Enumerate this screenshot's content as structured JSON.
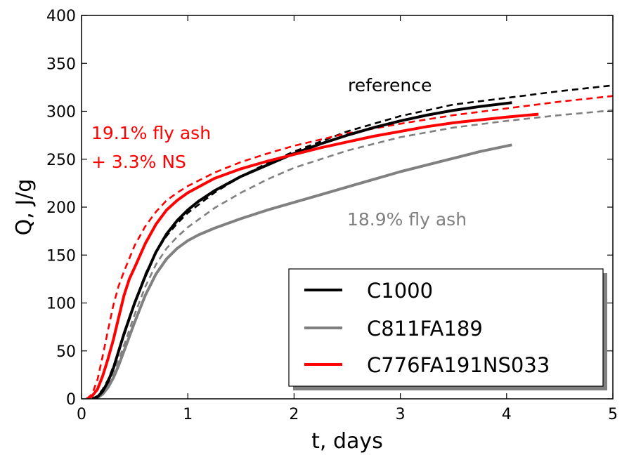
{
  "chart_data": {
    "type": "line",
    "xlabel": "t, days",
    "ylabel": "Q, J/g",
    "xlim": [
      0,
      5
    ],
    "ylim": [
      0,
      400
    ],
    "xticks": [
      "0",
      "1",
      "2",
      "3",
      "4",
      "5"
    ],
    "yticks": [
      "0",
      "50",
      "100",
      "150",
      "200",
      "250",
      "300",
      "350",
      "400"
    ],
    "grid": false,
    "legend_position": "bottom-right",
    "annotations": [
      {
        "text": "reference",
        "color": "#000000"
      },
      {
        "text": "19.1% fly ash",
        "color": "#ff0000"
      },
      {
        "text": "+ 3.3% NS",
        "color": "#ff0000"
      },
      {
        "text": "18.9% fly ash",
        "color": "#808080"
      }
    ],
    "series": [
      {
        "name": "C1000",
        "color": "#000000",
        "style": "solid",
        "x": [
          0.1,
          0.15,
          0.2,
          0.25,
          0.3,
          0.35,
          0.4,
          0.5,
          0.6,
          0.7,
          0.8,
          0.9,
          1.0,
          1.1,
          1.25,
          1.5,
          1.75,
          2.0,
          2.25,
          2.5,
          2.75,
          3.0,
          3.25,
          3.5,
          3.75,
          4.05
        ],
        "y": [
          0,
          2,
          8,
          18,
          32,
          50,
          68,
          100,
          128,
          153,
          172,
          186,
          197,
          206,
          217,
          232,
          244,
          256,
          266,
          275,
          283,
          290,
          296,
          301,
          305,
          309
        ]
      },
      {
        "name": "C811FA189",
        "color": "#808080",
        "style": "solid",
        "x": [
          0.1,
          0.15,
          0.2,
          0.25,
          0.3,
          0.35,
          0.4,
          0.5,
          0.6,
          0.7,
          0.8,
          0.9,
          1.0,
          1.1,
          1.25,
          1.5,
          1.75,
          2.0,
          2.25,
          2.5,
          2.75,
          3.0,
          3.25,
          3.5,
          3.75,
          4.05
        ],
        "y": [
          0,
          1,
          5,
          12,
          22,
          35,
          50,
          80,
          108,
          130,
          146,
          157,
          165,
          171,
          178,
          188,
          197,
          205,
          213,
          221,
          229,
          237,
          244,
          251,
          258,
          265
        ]
      },
      {
        "name": "C776FA191NS033",
        "color": "#ff0000",
        "style": "solid",
        "x": [
          0.05,
          0.1,
          0.15,
          0.2,
          0.25,
          0.3,
          0.35,
          0.4,
          0.45,
          0.5,
          0.6,
          0.7,
          0.8,
          0.9,
          1.0,
          1.25,
          1.5,
          1.75,
          2.0,
          2.25,
          2.5,
          2.75,
          3.0,
          3.25,
          3.5,
          3.75,
          4.0,
          4.3
        ],
        "y": [
          0,
          3,
          10,
          24,
          42,
          62,
          85,
          108,
          125,
          137,
          162,
          182,
          197,
          207,
          215,
          230,
          240,
          248,
          255,
          262,
          268,
          274,
          279,
          284,
          288,
          291,
          294,
          297
        ]
      },
      {
        "color": "#000000",
        "style": "dashed",
        "x": [
          0.1,
          0.15,
          0.2,
          0.25,
          0.3,
          0.4,
          0.5,
          0.6,
          0.7,
          0.8,
          0.9,
          1.0,
          1.25,
          1.5,
          1.75,
          2.0,
          2.5,
          3.0,
          3.5,
          4.0,
          4.5,
          5.0
        ],
        "y": [
          0,
          3,
          10,
          20,
          34,
          66,
          100,
          130,
          153,
          170,
          183,
          194,
          215,
          232,
          246,
          258,
          279,
          295,
          307,
          314,
          321,
          327
        ]
      },
      {
        "color": "#808080",
        "style": "dashed",
        "x": [
          0.1,
          0.15,
          0.2,
          0.25,
          0.3,
          0.4,
          0.5,
          0.6,
          0.7,
          0.8,
          0.9,
          1.0,
          1.25,
          1.5,
          1.75,
          2.0,
          2.5,
          3.0,
          3.5,
          4.0,
          4.5,
          5.0
        ],
        "y": [
          0,
          2,
          6,
          14,
          26,
          56,
          88,
          117,
          140,
          157,
          169,
          179,
          199,
          215,
          229,
          241,
          259,
          273,
          283,
          290,
          296,
          301
        ]
      },
      {
        "color": "#ff0000",
        "style": "dashed",
        "x": [
          0.05,
          0.1,
          0.15,
          0.2,
          0.25,
          0.3,
          0.35,
          0.4,
          0.5,
          0.6,
          0.7,
          0.8,
          0.9,
          1.0,
          1.25,
          1.5,
          1.75,
          2.0,
          2.5,
          3.0,
          3.5,
          4.0,
          4.5,
          5.0
        ],
        "y": [
          0,
          5,
          20,
          45,
          72,
          98,
          118,
          133,
          160,
          180,
          195,
          207,
          215,
          222,
          236,
          247,
          256,
          264,
          277,
          287,
          296,
          303,
          310,
          316
        ]
      }
    ]
  }
}
